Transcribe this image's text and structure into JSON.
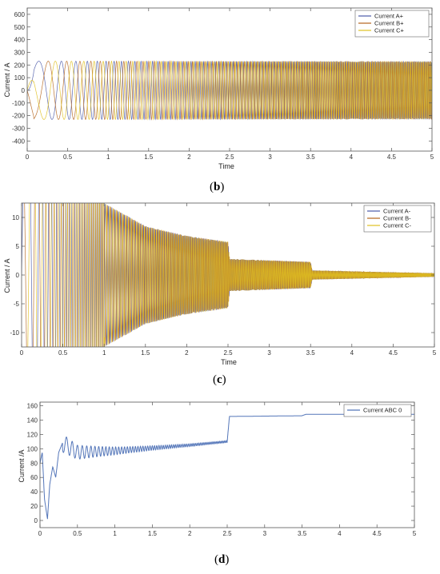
{
  "chart_data": [
    {
      "type": "line",
      "subfigure_label": "b",
      "xlabel": "Time",
      "ylabel": "Current / A",
      "xlim": [
        0,
        5
      ],
      "ylim": [
        -480,
        650
      ],
      "xticks": [
        "0",
        "0.5",
        "1",
        "1.5",
        "2",
        "2.5",
        "3",
        "3.5",
        "4",
        "4.5",
        "5"
      ],
      "yticks": [
        "-400",
        "-300",
        "-200",
        "-100",
        "0",
        "100",
        "200",
        "300",
        "400",
        "500",
        "600"
      ],
      "ytick_values": [
        -400,
        -300,
        -200,
        -100,
        0,
        100,
        200,
        300,
        400,
        500,
        600
      ],
      "legend": "top-right",
      "grid": false,
      "series": [
        {
          "name": "Current A+",
          "color": "#4b5aa8",
          "amplitude": 230,
          "phase_deg": 0
        },
        {
          "name": "Current B+",
          "color": "#b5651d",
          "amplitude": 230,
          "phase_deg": -120
        },
        {
          "name": "Current C+",
          "color": "#e0c020",
          "amplitude": 230,
          "phase_deg": 120
        }
      ]
    },
    {
      "type": "line",
      "subfigure_label": "c",
      "xlabel": "Time",
      "ylabel": "Current / A",
      "xlim": [
        0,
        5
      ],
      "ylim": [
        -12.5,
        12.5
      ],
      "xticks": [
        "0",
        "0.5",
        "1",
        "1.5",
        "2",
        "2.5",
        "3",
        "3.5",
        "4",
        "4.5",
        "5"
      ],
      "yticks": [
        "-10",
        "-5",
        "0",
        "5",
        "10"
      ],
      "ytick_values": [
        -10,
        -5,
        0,
        5,
        10
      ],
      "legend": "top-right",
      "grid": false,
      "series": [
        {
          "name": "Current A-",
          "color": "#4b5aa8"
        },
        {
          "name": "Current B-",
          "color": "#b5651d"
        },
        {
          "name": "Current C-",
          "color": "#e0c020"
        }
      ],
      "envelope_points": [
        [
          0.0,
          12.5
        ],
        [
          1.0,
          12.5
        ],
        [
          1.5,
          8.5
        ],
        [
          2.0,
          6.8
        ],
        [
          2.5,
          5.8
        ],
        [
          2.52,
          2.8
        ],
        [
          3.5,
          2.3
        ],
        [
          3.52,
          0.8
        ],
        [
          5.0,
          0.3
        ]
      ]
    },
    {
      "type": "line",
      "subfigure_label": "d",
      "ylabel": "Current /A",
      "xlim": [
        0,
        5
      ],
      "ylim": [
        -10,
        165
      ],
      "xticks": [
        "0",
        "0.5",
        "1",
        "1.5",
        "2",
        "2.5",
        "3",
        "3.5",
        "4",
        "4.5",
        "5"
      ],
      "yticks": [
        "0",
        "20",
        "40",
        "60",
        "80",
        "100",
        "120",
        "140",
        "160"
      ],
      "ytick_values": [
        0,
        20,
        40,
        60,
        80,
        100,
        120,
        140,
        160
      ],
      "legend": "top-right",
      "grid": false,
      "series": [
        {
          "name": "Current ABC 0",
          "color": "#4b6fb5",
          "points": [
            [
              0,
              80
            ],
            [
              0.03,
              95
            ],
            [
              0.06,
              30
            ],
            [
              0.1,
              2
            ],
            [
              0.13,
              50
            ],
            [
              0.17,
              75
            ],
            [
              0.21,
              60
            ],
            [
              0.25,
              95
            ],
            [
              0.3,
              108
            ],
            [
              0.5,
              95
            ],
            [
              1.0,
              97
            ],
            [
              1.5,
              101
            ],
            [
              2.0,
              105
            ],
            [
              2.5,
              110
            ],
            [
              2.53,
              145
            ],
            [
              3.5,
              146
            ],
            [
              3.55,
              148
            ],
            [
              4.0,
              148
            ],
            [
              4.5,
              148
            ],
            [
              5.0,
              148
            ]
          ]
        }
      ]
    }
  ]
}
